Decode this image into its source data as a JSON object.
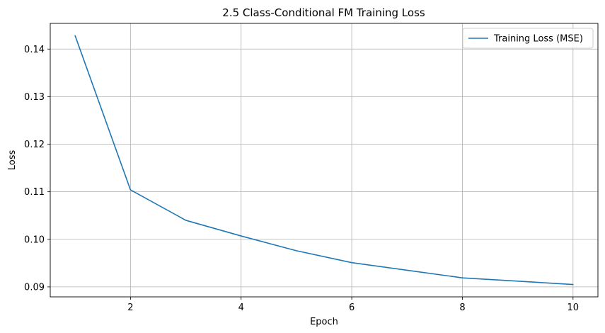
{
  "chart_data": {
    "type": "line",
    "title": "2.5 Class-Conditional FM Training Loss",
    "xlabel": "Epoch",
    "ylabel": "Loss",
    "xlim": [
      0.55,
      10.45
    ],
    "ylim": [
      0.0879,
      0.1454
    ],
    "grid": true,
    "legend_position": "top-right",
    "x_ticks": [
      2,
      4,
      6,
      8,
      10
    ],
    "x_tick_labels": [
      "2",
      "4",
      "6",
      "8",
      "10"
    ],
    "y_ticks": [
      0.09,
      0.1,
      0.11,
      0.12,
      0.13,
      0.14
    ],
    "y_tick_labels": [
      "0.09",
      "0.10",
      "0.11",
      "0.12",
      "0.13",
      "0.14"
    ],
    "series": [
      {
        "name": "Training Loss (MSE)",
        "color": "#1f77b4",
        "x": [
          1,
          2,
          3,
          4,
          5,
          6,
          7,
          8,
          9,
          10
        ],
        "y": [
          0.1428,
          0.1104,
          0.104,
          0.1007,
          0.0976,
          0.0951,
          0.0935,
          0.0919,
          0.0912,
          0.0905
        ]
      }
    ]
  }
}
